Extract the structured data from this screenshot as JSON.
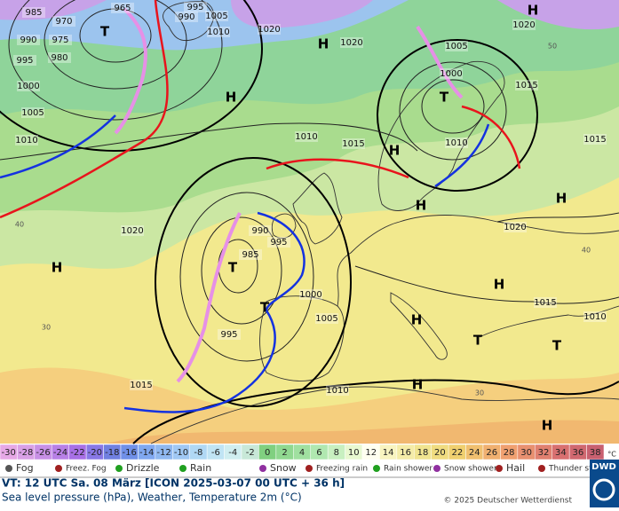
{
  "map": {
    "pressure_labels": [
      "985",
      "970",
      "965",
      "995",
      "1005",
      "990",
      "1010",
      "1020",
      "995",
      "980",
      "975",
      "990",
      "1000",
      "1005",
      "1010",
      "1020",
      "1005",
      "1000",
      "1015",
      "1020",
      "1010",
      "1015",
      "1010",
      "1015",
      "1020",
      "990",
      "995",
      "985",
      "1000",
      "1005",
      "995",
      "1015",
      "1010",
      "1020",
      "1015",
      "1010"
    ],
    "high_labels": [
      "H",
      "H",
      "H",
      "H",
      "H",
      "H",
      "H",
      "H",
      "H",
      "H",
      "H"
    ],
    "low_labels": [
      "T",
      "T",
      "T",
      "T",
      "T",
      "T"
    ],
    "temp_labels": [
      "40",
      "30",
      "30",
      "40",
      "50"
    ]
  },
  "scale": {
    "labels": [
      "-30",
      "-28",
      "-26",
      "-24",
      "-22",
      "-20",
      "-18",
      "-16",
      "-14",
      "-12",
      "-10",
      "-8",
      "-6",
      "-4",
      "-2",
      "0",
      "2",
      "4",
      "6",
      "8",
      "10",
      "12",
      "14",
      "16",
      "18",
      "20",
      "22",
      "24",
      "26",
      "28",
      "30",
      "32",
      "34",
      "36",
      "38"
    ],
    "colors": [
      "#e6a8e6",
      "#d9a0e6",
      "#c890e6",
      "#b880e6",
      "#a870e6",
      "#8878e6",
      "#7080e0",
      "#7090e8",
      "#80a8f0",
      "#90b8f0",
      "#a0c8f4",
      "#b0d8f4",
      "#c0e4f4",
      "#d0eef0",
      "#c8e8d8",
      "#80d080",
      "#90d890",
      "#a0e0a0",
      "#b0e8b0",
      "#c8f0c0",
      "#e8f8d0",
      "#fffff0",
      "#f8f4c0",
      "#f4eca8",
      "#f0e490",
      "#f0dc80",
      "#f0d070",
      "#f0c070",
      "#f0b070",
      "#f0a070",
      "#e89070",
      "#e08070",
      "#d87070",
      "#d06870",
      "#c86070"
    ],
    "unit": "°C"
  },
  "legend": [
    "Fog",
    "Freez. Fog",
    "Drizzle",
    "Rain",
    "Snow",
    "Freezing rain",
    "Rain shower",
    "Snow shower",
    "Hail",
    "Thunder storm"
  ],
  "footer": {
    "valid_time": "VT: 12 UTC Sa.  08 März [ICON 2025-03-07  00 UTC + 36 h]",
    "description": "Sea level pressure (hPa), Weather, Temperature 2m (°C)",
    "copyright": "© 2025 Deutscher Wetterdienst",
    "logo": "DWD"
  }
}
